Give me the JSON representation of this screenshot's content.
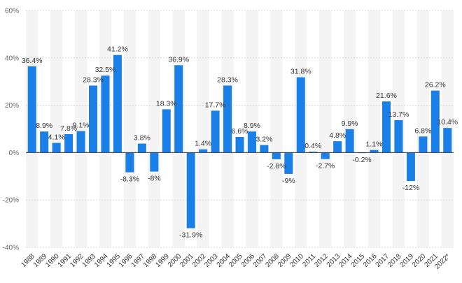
{
  "chart_data": {
    "type": "bar",
    "categories": [
      "1988",
      "1989",
      "1990",
      "1991",
      "1992",
      "1993",
      "1994",
      "1995",
      "1996",
      "1997",
      "1998",
      "1999",
      "2000",
      "2001",
      "2002",
      "2003",
      "2004",
      "2005",
      "2006",
      "2007",
      "2008",
      "2009",
      "2010",
      "2011",
      "2012",
      "2013",
      "2014",
      "2015",
      "2016",
      "2017",
      "2018",
      "2019",
      "2020",
      "2021",
      "2022*"
    ],
    "values": [
      36.4,
      8.9,
      4.1,
      7.8,
      9.1,
      28.3,
      32.5,
      41.2,
      -8.3,
      3.8,
      -8,
      18.3,
      36.9,
      -31.9,
      1.4,
      17.7,
      28.3,
      6.6,
      8.9,
      3.2,
      -2.8,
      -9,
      31.8,
      0.4,
      -2.7,
      4.8,
      9.9,
      -0.2,
      1.1,
      21.6,
      13.7,
      -12,
      6.8,
      26.2,
      10.4
    ],
    "data_labels": [
      "36.4%",
      "8.9%",
      "4.1%",
      "7.8%",
      "9.1%",
      "28.3%",
      "32.5%",
      "41.2%",
      "-8.3%",
      "3.8%",
      "-8%",
      "18.3%",
      "36.9%",
      "-31.9%",
      "1.4%",
      "17.7%",
      "28.3%",
      "6.6%",
      "8.9%",
      "3.2%",
      "-2.8%",
      "-9%",
      "31.8%",
      "0.4%",
      "-2.7%",
      "4.8%",
      "9.9%",
      "-0.2%",
      "1.1%",
      "21.6%",
      "13.7%",
      "-12%",
      "6.8%",
      "26.2%",
      "10.4%"
    ],
    "y_ticks": [
      60,
      40,
      20,
      0,
      -20,
      -40
    ],
    "y_tick_labels": [
      "60%",
      "40%",
      "20%",
      "0%",
      "-20%",
      "-40%"
    ],
    "ylim": [
      -40,
      60
    ],
    "title": "",
    "xlabel": "",
    "ylabel": "",
    "bar_color": "#1a7fe6",
    "band_color": "#f4f4f4",
    "grid": "horizontal-dotted"
  }
}
